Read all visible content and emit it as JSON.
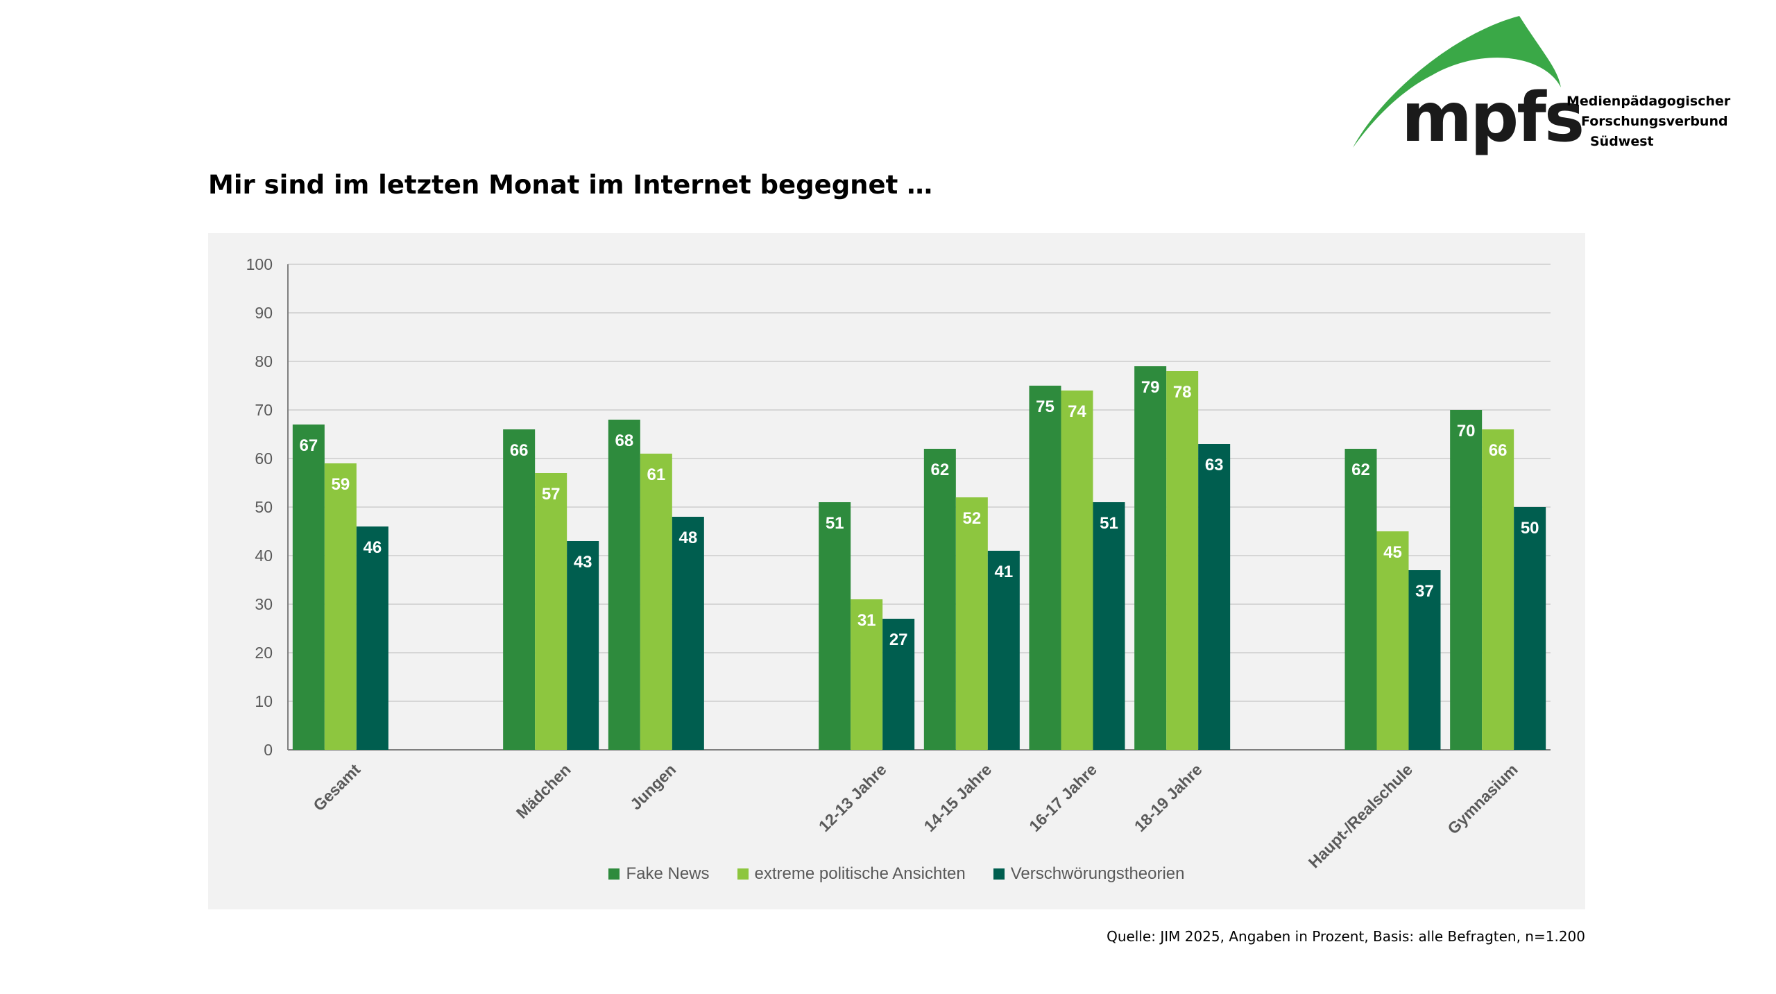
{
  "logo": {
    "text": "mpfs",
    "org_lines": [
      "Medienpädagogischer",
      "Forschungsverbund",
      "Südwest"
    ],
    "color_green": "#3aa847",
    "color_text": "#1a1a1a"
  },
  "title": "Mir sind im letzten Monat im Internet begegnet …",
  "source": "Quelle: JIM 2025, Angaben in Prozent, Basis: alle Befragten, n=1.200",
  "chart_data": {
    "type": "bar",
    "categories": [
      "Gesamt",
      "Mädchen",
      "Jungen",
      "12-13 Jahre",
      "14-15 Jahre",
      "16-17 Jahre",
      "18-19 Jahre",
      "Haupt-/Realschule",
      "Gymnasium"
    ],
    "groups": [
      [
        "Gesamt"
      ],
      [
        "Mädchen",
        "Jungen"
      ],
      [
        "12-13 Jahre",
        "14-15 Jahre",
        "16-17 Jahre",
        "18-19 Jahre"
      ],
      [
        "Haupt-/Realschule",
        "Gymnasium"
      ]
    ],
    "series": [
      {
        "name": "Fake News",
        "color": "#2e8b3d",
        "values": [
          67,
          66,
          68,
          51,
          62,
          75,
          79,
          62,
          70
        ]
      },
      {
        "name": "extreme politische Ansichten",
        "color": "#8dc63f",
        "values": [
          59,
          57,
          61,
          31,
          52,
          74,
          78,
          45,
          66
        ]
      },
      {
        "name": "Verschwörungstheorien",
        "color": "#005e4f",
        "values": [
          46,
          43,
          48,
          27,
          41,
          51,
          63,
          37,
          50
        ]
      }
    ],
    "ylim": [
      0,
      100
    ],
    "yticks": [
      0,
      10,
      20,
      30,
      40,
      50,
      60,
      70,
      80,
      90,
      100
    ],
    "grid": true,
    "legend_position": "bottom",
    "data_labels": true
  }
}
